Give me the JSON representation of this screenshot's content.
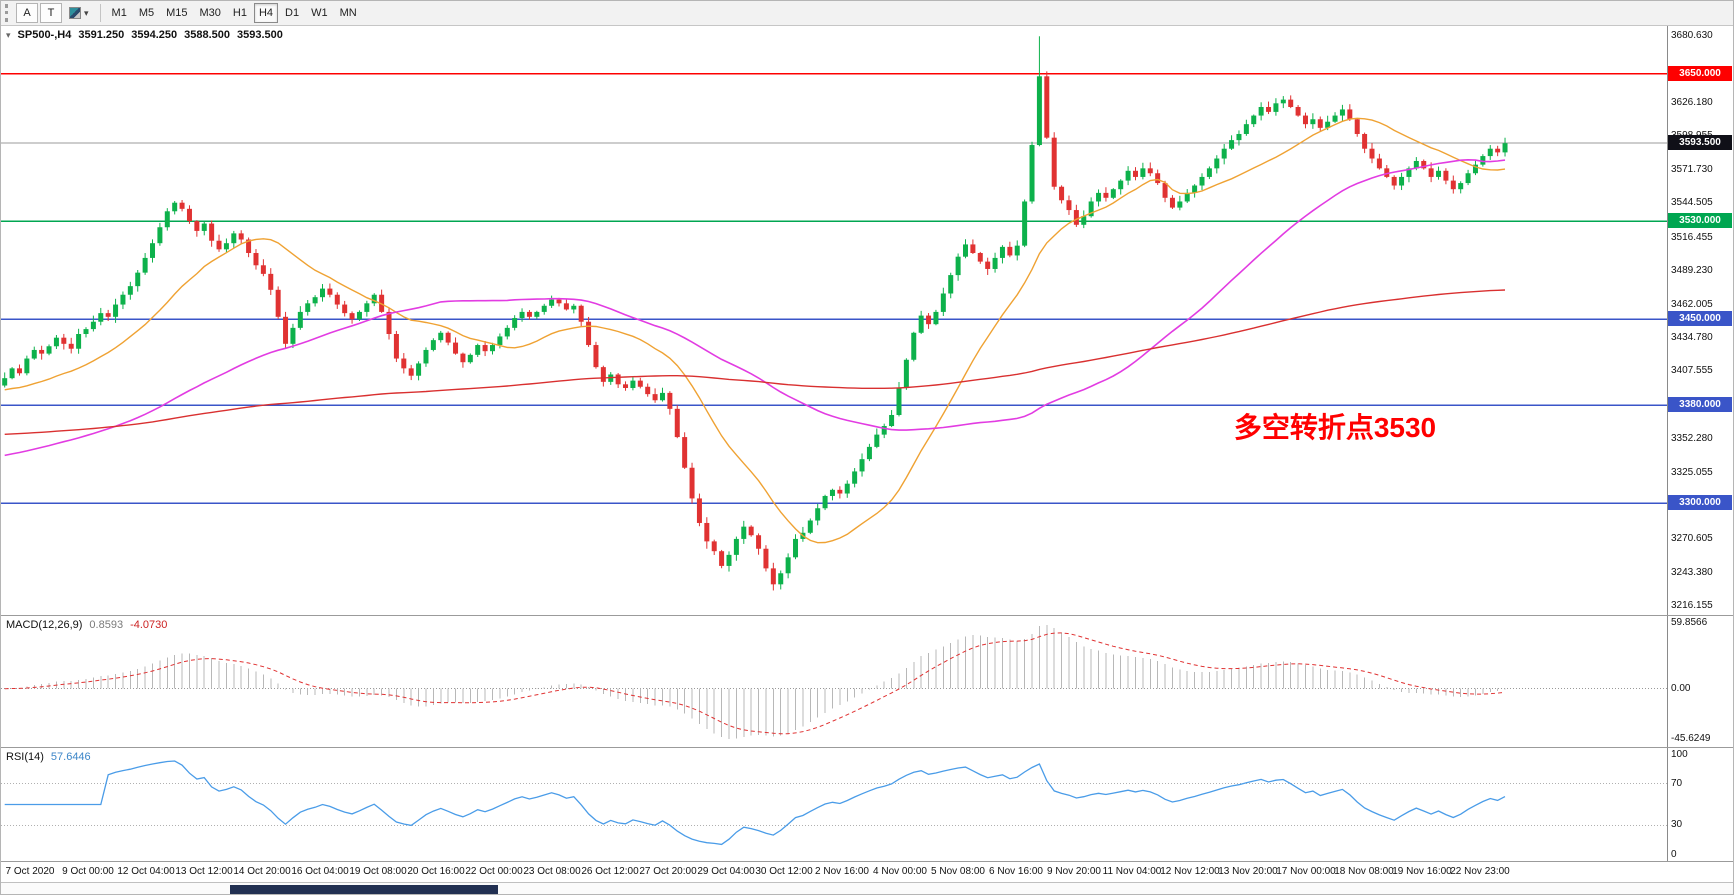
{
  "toolbar": {
    "font_button": "A",
    "text_button": "T",
    "timeframes": [
      "M1",
      "M5",
      "M15",
      "M30",
      "H1",
      "H4",
      "D1",
      "W1",
      "MN"
    ],
    "active_timeframe": "H4"
  },
  "chart_header": {
    "symbol_tf": "SP500-,H4",
    "open": "3591.250",
    "high": "3594.250",
    "low": "3588.500",
    "close": "3593.500"
  },
  "annotation": {
    "text": "多空转折点3530"
  },
  "price_axis": {
    "range": {
      "min": 3209.0,
      "max": 3689.0
    },
    "ticks": [
      {
        "v": 3680.63,
        "t": "3680.630"
      },
      {
        "v": 3626.18,
        "t": "3626.180"
      },
      {
        "v": 3598.955,
        "t": "3598.955"
      },
      {
        "v": 3571.73,
        "t": "3571.730"
      },
      {
        "v": 3544.505,
        "t": "3544.505"
      },
      {
        "v": 3516.455,
        "t": "3516.455"
      },
      {
        "v": 3489.23,
        "t": "3489.230"
      },
      {
        "v": 3462.005,
        "t": "3462.005"
      },
      {
        "v": 3434.78,
        "t": "3434.780"
      },
      {
        "v": 3407.555,
        "t": "3407.555"
      },
      {
        "v": 3352.28,
        "t": "3352.280"
      },
      {
        "v": 3325.055,
        "t": "3325.055"
      },
      {
        "v": 3270.605,
        "t": "3270.605"
      },
      {
        "v": 3243.38,
        "t": "3243.380"
      },
      {
        "v": 3216.155,
        "t": "3216.155"
      }
    ],
    "current_price": {
      "value": 3593.5,
      "label": "3593.500",
      "bg": "#101018"
    },
    "levels": [
      {
        "value": 3650.0,
        "label": "3650.000",
        "color": "#fe0000"
      },
      {
        "value": 3530.0,
        "label": "3530.000",
        "color": "#00a651"
      },
      {
        "value": 3450.0,
        "label": "3450.000",
        "color": "#3a55c8"
      },
      {
        "value": 3380.0,
        "label": "3380.000",
        "color": "#3a55c8"
      },
      {
        "value": 3300.0,
        "label": "3300.000",
        "color": "#3a55c8"
      }
    ]
  },
  "macd_panel": {
    "label": "MACD(12,26,9)",
    "value_main": "0.8593",
    "value_signal": "-4.0730",
    "range": {
      "min": -53,
      "max": 66
    },
    "axis_ticks": [
      {
        "v": 59.8566,
        "t": "59.8566"
      },
      {
        "v": 0,
        "t": "0.00"
      },
      {
        "v": -45.6249,
        "t": "-45.6249"
      }
    ]
  },
  "rsi_panel": {
    "label": "RSI(14)",
    "value": "57.6446",
    "range": {
      "min": -4,
      "max": 104
    },
    "axis_ticks": [
      {
        "v": 100,
        "t": "100"
      },
      {
        "v": 70,
        "t": "70"
      },
      {
        "v": 30,
        "t": "30"
      },
      {
        "v": 0,
        "t": "0"
      }
    ],
    "levels": [
      70,
      30
    ]
  },
  "time_axis": {
    "labels": [
      "7 Oct 2020",
      "9 Oct 00:00",
      "12 Oct 04:00",
      "13 Oct 12:00",
      "14 Oct 20:00",
      "16 Oct 04:00",
      "19 Oct 08:00",
      "20 Oct 16:00",
      "22 Oct 00:00",
      "23 Oct 08:00",
      "26 Oct 12:00",
      "27 Oct 20:00",
      "29 Oct 04:00",
      "30 Oct 12:00",
      "2 Nov 16:00",
      "4 Nov 00:00",
      "5 Nov 08:00",
      "6 Nov 16:00",
      "9 Nov 20:00",
      "11 Nov 04:00",
      "12 Nov 12:00",
      "13 Nov 20:00",
      "17 Nov 00:00",
      "18 Nov 08:00",
      "19 Nov 16:00",
      "22 Nov 23:00"
    ]
  },
  "scrollbar": {
    "start": 0.132,
    "end": 0.287
  },
  "chart_data": {
    "type": "candlestick",
    "symbol": "SP500-",
    "timeframe": "H4",
    "bars_fraction": 0.905,
    "colors": {
      "up": "#0db14b",
      "down": "#e03232",
      "ma_fast": "#efa233",
      "ma_mid": "#e23ce2",
      "ma_slow": "#d93030",
      "macd_hist": "#b8b8b8",
      "macd_signal": "#e03232",
      "rsi_line": "#4a9ce8",
      "price_line": "#9b9b9b"
    },
    "candles": {
      "first_open": 3396,
      "closes": [
        3402,
        3410,
        3406,
        3418,
        3425,
        3422,
        3428,
        3435,
        3430,
        3426,
        3438,
        3442,
        3448,
        3455,
        3452,
        3462,
        3470,
        3477,
        3488,
        3500,
        3512,
        3525,
        3538,
        3545,
        3540,
        3530,
        3522,
        3528,
        3514,
        3507,
        3512,
        3520,
        3515,
        3504,
        3494,
        3487,
        3474,
        3452,
        3430,
        3443,
        3456,
        3463,
        3468,
        3475,
        3470,
        3462,
        3455,
        3450,
        3456,
        3463,
        3470,
        3456,
        3438,
        3418,
        3410,
        3404,
        3414,
        3425,
        3433,
        3439,
        3431,
        3422,
        3415,
        3421,
        3429,
        3424,
        3429,
        3436,
        3443,
        3451,
        3456,
        3452,
        3456,
        3461,
        3466,
        3463,
        3458,
        3461,
        3448,
        3429,
        3411,
        3399,
        3405,
        3397,
        3394,
        3400,
        3395,
        3389,
        3384,
        3390,
        3377,
        3354,
        3329,
        3304,
        3284,
        3269,
        3261,
        3249,
        3258,
        3271,
        3281,
        3274,
        3263,
        3247,
        3234,
        3243,
        3256,
        3271,
        3276,
        3286,
        3296,
        3306,
        3311,
        3308,
        3316,
        3326,
        3336,
        3346,
        3356,
        3363,
        3372,
        3394,
        3417,
        3439,
        3453,
        3446,
        3456,
        3471,
        3486,
        3501,
        3511,
        3504,
        3497,
        3491,
        3500,
        3509,
        3502,
        3510,
        3546,
        3592,
        3648,
        3598,
        3558,
        3547,
        3539,
        3527,
        3534,
        3546,
        3553,
        3549,
        3556,
        3563,
        3571,
        3566,
        3573,
        3569,
        3561,
        3549,
        3541,
        3546,
        3553,
        3559,
        3566,
        3573,
        3581,
        3589,
        3596,
        3601,
        3609,
        3616,
        3623,
        3619,
        3626,
        3629,
        3623,
        3616,
        3609,
        3613,
        3606,
        3611,
        3616,
        3621,
        3613,
        3601,
        3589,
        3581,
        3573,
        3566,
        3559,
        3566,
        3573,
        3579,
        3573,
        3566,
        3571,
        3563,
        3556,
        3561,
        3569,
        3576,
        3583,
        3589,
        3586,
        3593.5
      ],
      "overrides": [
        {
          "i": 140,
          "h": 3680.63
        },
        {
          "i": 104,
          "l": 3229
        },
        {
          "i": 95,
          "l": 3263
        }
      ]
    },
    "moving_averages": [
      {
        "name": "ma_fast",
        "method": "sma",
        "period": 18,
        "seed": 3392,
        "color": "#efa233",
        "width": 1.4
      },
      {
        "name": "ma_mid",
        "method": "sma",
        "period": 60,
        "seed": 3338,
        "color": "#e23ce2",
        "width": 1.6
      },
      {
        "name": "ma_slow",
        "method": "sma",
        "period": 180,
        "seed": 3356,
        "color": "#d93030",
        "width": 1.4
      }
    ],
    "macd": {
      "fast": 12,
      "slow": 26,
      "signal": 9,
      "hist_max_label": 59.8566,
      "hist_min_label": -45.6249
    },
    "rsi": {
      "period": 14
    }
  }
}
